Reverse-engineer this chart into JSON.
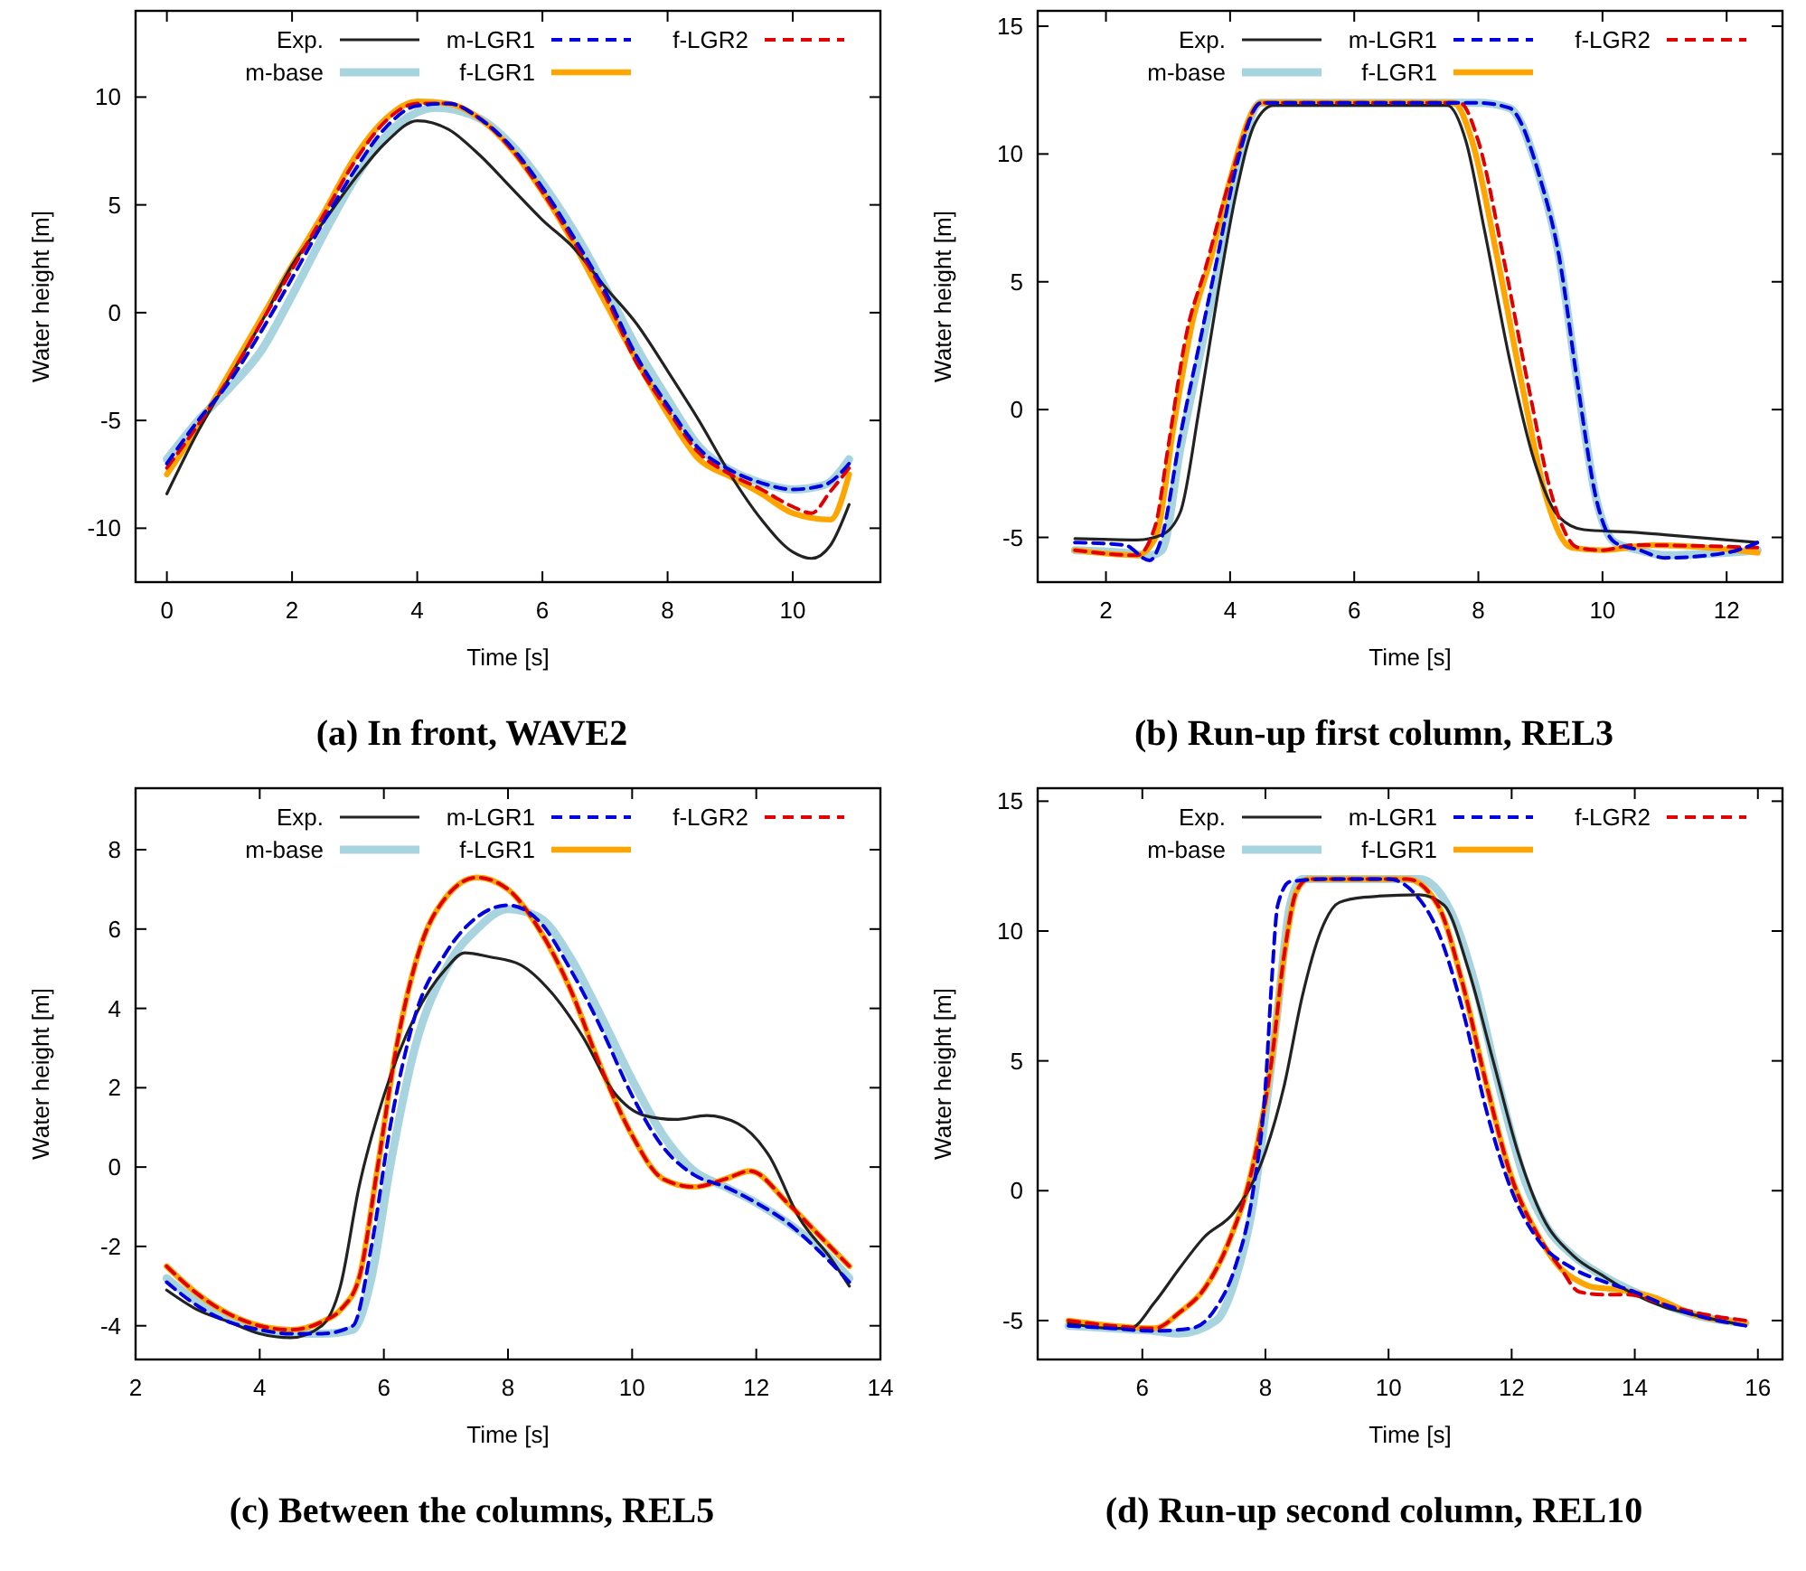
{
  "chart_data": [
    {
      "type": "line",
      "title": "(a) In front, WAVE2",
      "xlabel": "Time [s]",
      "ylabel": "Water height [m]",
      "xlim": [
        -0.5,
        11.4
      ],
      "ylim": [
        -12.5,
        14
      ],
      "xticks": [
        0,
        2,
        4,
        6,
        8,
        10
      ],
      "yticks": [
        -10,
        -5,
        0,
        5,
        10
      ],
      "legend": "top",
      "grid": false,
      "series": [
        {
          "name": "Exp.",
          "color": "#222222",
          "line_style": "solid",
          "x": [
            0,
            0.5,
            1,
            1.5,
            2,
            2.5,
            3,
            3.5,
            4,
            4.5,
            5,
            5.5,
            6,
            6.5,
            7,
            7.5,
            8,
            8.5,
            9,
            9.5,
            10,
            10.3,
            10.6,
            10.9
          ],
          "values": [
            -8.4,
            -5.5,
            -3,
            -0.5,
            2.2,
            4.2,
            6.2,
            7.9,
            8.9,
            8.5,
            7.3,
            5.8,
            4.3,
            3,
            1.2,
            -0.5,
            -2.7,
            -5,
            -7.5,
            -9.6,
            -11.1,
            -11.4,
            -10.8,
            -8.9
          ]
        },
        {
          "name": "m-LGR1",
          "color": "#0000e0",
          "line_style": "dashed",
          "x": [
            0,
            0.5,
            1,
            1.5,
            2,
            2.5,
            3,
            3.5,
            4,
            4.5,
            5,
            5.5,
            6,
            6.5,
            7,
            7.5,
            8,
            8.5,
            9,
            9.5,
            10,
            10.5,
            10.9
          ],
          "values": [
            -7,
            -5,
            -3.2,
            -0.9,
            1.6,
            4.2,
            6.6,
            8.6,
            9.6,
            9.7,
            9,
            7.7,
            5.8,
            3.5,
            1,
            -2,
            -4.3,
            -6.3,
            -7.3,
            -7.9,
            -8.2,
            -8,
            -7
          ]
        },
        {
          "name": "f-LGR2",
          "color": "#e00000",
          "line_style": "dashed",
          "x": [
            0,
            0.5,
            1,
            1.5,
            2,
            2.5,
            3,
            3.5,
            4,
            4.5,
            5,
            5.5,
            6,
            6.5,
            7,
            7.5,
            8,
            8.5,
            9,
            9.5,
            10,
            10.3,
            10.6,
            10.9
          ],
          "values": [
            -7.2,
            -5.2,
            -3,
            -0.5,
            2,
            4.5,
            7,
            8.9,
            9.7,
            9.7,
            9,
            7.6,
            5.6,
            3.3,
            0.8,
            -2.3,
            -4.5,
            -6.5,
            -7.5,
            -8.2,
            -9,
            -9.3,
            -8.3,
            -7.2
          ]
        },
        {
          "name": "m-base",
          "color": "#a8d4e0",
          "line_style": "solid",
          "x": [
            0,
            0.5,
            1,
            1.5,
            2,
            2.5,
            3,
            3.5,
            4,
            4.3,
            5,
            5.5,
            6,
            6.5,
            7,
            7.5,
            8,
            8.5,
            9,
            9.5,
            10,
            10.5,
            10.9
          ],
          "values": [
            -6.8,
            -5,
            -3.5,
            -1.8,
            0.8,
            3.6,
            6.2,
            8.2,
            9.3,
            9.5,
            9,
            7.8,
            6,
            3.8,
            1.2,
            -1.6,
            -4,
            -6.2,
            -7.3,
            -7.9,
            -8.2,
            -8,
            -6.8
          ]
        },
        {
          "name": "f-LGR1",
          "color": "#ffa500",
          "line_style": "solid",
          "x": [
            0,
            0.5,
            1,
            1.5,
            2,
            2.5,
            3,
            3.5,
            4,
            4.5,
            5,
            5.5,
            6,
            6.5,
            7,
            7.5,
            8,
            8.5,
            9,
            9.5,
            10,
            10.6,
            10.9
          ],
          "values": [
            -7.5,
            -5.3,
            -2.8,
            -0.3,
            2.2,
            4.6,
            7.2,
            9,
            9.8,
            9.7,
            9,
            7.6,
            5.6,
            3.2,
            0.5,
            -2.2,
            -4.7,
            -6.8,
            -7.6,
            -8.4,
            -9.3,
            -9.6,
            -7.5
          ]
        }
      ]
    },
    {
      "type": "line",
      "title": "(b) Run-up first column, REL3",
      "xlabel": "Time [s]",
      "ylabel": "Water height [m]",
      "xlim": [
        0.9,
        12.9
      ],
      "ylim": [
        -6.75,
        15.6
      ],
      "xticks": [
        2,
        4,
        6,
        8,
        10,
        12
      ],
      "yticks": [
        -5,
        0,
        5,
        10,
        15
      ],
      "legend": "top",
      "grid": false,
      "series": [
        {
          "name": "Exp.",
          "color": "#222222",
          "line_style": "solid",
          "x": [
            1.5,
            2.5,
            2.9,
            3.2,
            3.5,
            3.8,
            4.1,
            4.4,
            4.7,
            6,
            7.5,
            7.8,
            8.1,
            8.5,
            8.9,
            9.3,
            9.7,
            10.5,
            11,
            12.5
          ],
          "values": [
            -5.05,
            -5.1,
            -4.9,
            -4,
            0,
            4.5,
            8.5,
            11.2,
            11.9,
            11.9,
            11.9,
            10.5,
            7,
            2,
            -2,
            -4.2,
            -4.7,
            -4.8,
            -4.9,
            -5.2
          ]
        },
        {
          "name": "m-LGR1",
          "color": "#0000e0",
          "line_style": "dashed",
          "x": [
            1.5,
            2.3,
            2.7,
            2.9,
            3.2,
            3.5,
            3.8,
            4.1,
            4.5,
            6,
            8,
            8.5,
            9,
            9.3,
            9.6,
            9.9,
            10.2,
            10.6,
            11,
            12,
            12.5
          ],
          "values": [
            -5.2,
            -5.3,
            -5.9,
            -5,
            -1,
            2.5,
            6,
            9.5,
            12,
            12,
            12,
            11.8,
            9,
            6,
            1,
            -3.5,
            -5.2,
            -5.5,
            -5.8,
            -5.6,
            -5.2
          ]
        },
        {
          "name": "f-LGR2",
          "color": "#e00000",
          "line_style": "dashed",
          "x": [
            1.5,
            2.5,
            2.8,
            3,
            3.3,
            3.6,
            4,
            4.5,
            7.7,
            8,
            8.4,
            8.8,
            9.2,
            9.6,
            10,
            10.5,
            12.5
          ],
          "values": [
            -5.5,
            -5.7,
            -4.5,
            -1.5,
            3,
            5.5,
            9,
            12,
            12,
            10.5,
            6,
            1,
            -3.5,
            -5.4,
            -5.5,
            -5.3,
            -5.4
          ]
        },
        {
          "name": "m-base",
          "color": "#a8d4e0",
          "line_style": "solid",
          "x": [
            1.5,
            2.3,
            2.7,
            2.9,
            3.2,
            3.5,
            3.8,
            4.1,
            4.5,
            6,
            8,
            8.5,
            9,
            9.3,
            9.6,
            9.9,
            10.2,
            10.6,
            11,
            12,
            12.5
          ],
          "values": [
            -5.5,
            -5.6,
            -5.7,
            -5.5,
            -1.5,
            2,
            5.5,
            9.3,
            12,
            12,
            12,
            11.8,
            9,
            6,
            1,
            -3.5,
            -5.2,
            -5.5,
            -5.7,
            -5.6,
            -5.5
          ]
        },
        {
          "name": "f-LGR1",
          "color": "#ffa500",
          "line_style": "solid",
          "x": [
            1.5,
            2.5,
            2.8,
            3.1,
            3.4,
            3.7,
            4,
            4.5,
            7.6,
            7.9,
            8.3,
            8.7,
            9.1,
            9.5,
            10,
            10.8,
            12.5
          ],
          "values": [
            -5.5,
            -5.7,
            -5,
            -0.5,
            3.5,
            6,
            9,
            12,
            12,
            10.5,
            6,
            1,
            -3.5,
            -5.4,
            -5.5,
            -5.3,
            -5.6
          ]
        }
      ]
    },
    {
      "type": "line",
      "title": "(c) Between the columns, REL5",
      "xlabel": "Time [s]",
      "ylabel": "Water height [m]",
      "xlim": [
        2,
        14
      ],
      "ylim": [
        -4.85,
        9.55
      ],
      "xticks": [
        2,
        4,
        6,
        8,
        10,
        12,
        14
      ],
      "yticks": [
        -4,
        -2,
        0,
        2,
        4,
        6,
        8
      ],
      "legend": "top",
      "grid": false,
      "series": [
        {
          "name": "Exp.",
          "color": "#222222",
          "line_style": "solid",
          "x": [
            2.5,
            3,
            3.5,
            4,
            4.5,
            5,
            5.3,
            5.6,
            6,
            6.5,
            7,
            7.3,
            7.7,
            8.2,
            8.7,
            9.2,
            9.7,
            10.2,
            10.7,
            11.2,
            11.7,
            12.2,
            12.7,
            13.2,
            13.5
          ],
          "values": [
            -3.1,
            -3.6,
            -3.9,
            -4.2,
            -4.3,
            -4,
            -3,
            -0.5,
            1.8,
            3.8,
            5,
            5.4,
            5.3,
            5.1,
            4.4,
            3.3,
            1.9,
            1.3,
            1.2,
            1.3,
            1.1,
            0.3,
            -1.3,
            -2.3,
            -3
          ]
        },
        {
          "name": "m-LGR1",
          "color": "#0000e0",
          "line_style": "dashed",
          "x": [
            2.5,
            3,
            3.5,
            4,
            4.5,
            5,
            5.5,
            5.8,
            6.1,
            6.5,
            7,
            7.5,
            8,
            8.5,
            9,
            9.5,
            10,
            10.5,
            11,
            11.5,
            12,
            12.5,
            13,
            13.5
          ],
          "values": [
            -2.9,
            -3.5,
            -3.9,
            -4.1,
            -4.2,
            -4.2,
            -4,
            -2,
            1,
            3.8,
            5.4,
            6.3,
            6.6,
            6.2,
            5,
            3.5,
            1.8,
            0.5,
            -0.2,
            -0.5,
            -0.9,
            -1.4,
            -2.1,
            -2.9
          ]
        },
        {
          "name": "f-LGR2",
          "color": "#e00000",
          "line_style": "dashed",
          "x": [
            2.5,
            3,
            3.5,
            4,
            4.5,
            5,
            5.3,
            5.6,
            5.9,
            6.2,
            6.6,
            7,
            7.5,
            8,
            8.5,
            9,
            9.5,
            10,
            10.5,
            11,
            11.5,
            11.9,
            12.5,
            13,
            13.5
          ],
          "values": [
            -2.5,
            -3.2,
            -3.7,
            -4,
            -4.1,
            -3.9,
            -3.6,
            -2.8,
            0,
            3,
            5.6,
            6.8,
            7.3,
            7,
            6,
            4.5,
            2.5,
            0.8,
            -0.3,
            -0.5,
            -0.3,
            -0.1,
            -0.9,
            -1.7,
            -2.5
          ]
        },
        {
          "name": "m-base",
          "color": "#a8d4e0",
          "line_style": "solid",
          "x": [
            2.5,
            3,
            3.5,
            4,
            4.5,
            5,
            5.5,
            5.8,
            6.1,
            6.5,
            7,
            7.5,
            8,
            8.5,
            9,
            9.5,
            10,
            10.5,
            11,
            11.5,
            12,
            12.5,
            13,
            13.5
          ],
          "values": [
            -2.8,
            -3.4,
            -3.8,
            -4.1,
            -4.2,
            -4.2,
            -4.1,
            -2.8,
            0,
            3,
            5,
            6,
            6.5,
            6.3,
            5.3,
            3.8,
            2.2,
            0.8,
            -0.1,
            -0.5,
            -0.9,
            -1.4,
            -2,
            -2.8
          ]
        },
        {
          "name": "f-LGR1",
          "color": "#ffa500",
          "line_style": "solid",
          "x": [
            2.5,
            3,
            3.5,
            4,
            4.5,
            5,
            5.3,
            5.6,
            5.9,
            6.2,
            6.6,
            7,
            7.5,
            8,
            8.5,
            9,
            9.5,
            10,
            10.5,
            11,
            11.5,
            11.9,
            12.5,
            13,
            13.5
          ],
          "values": [
            -2.5,
            -3.2,
            -3.7,
            -4,
            -4.1,
            -3.9,
            -3.6,
            -2.8,
            0,
            3,
            5.6,
            6.8,
            7.3,
            7,
            6,
            4.5,
            2.5,
            0.8,
            -0.3,
            -0.5,
            -0.3,
            -0.1,
            -0.9,
            -1.7,
            -2.5
          ]
        }
      ]
    },
    {
      "type": "line",
      "title": "(d) Run-up second column, REL10",
      "xlabel": "Time [s]",
      "ylabel": "Water height [m]",
      "xlim": [
        4.3,
        16.4
      ],
      "ylim": [
        -6.5,
        15.5
      ],
      "xticks": [
        6,
        8,
        10,
        12,
        14,
        16
      ],
      "yticks": [
        -5,
        0,
        5,
        10,
        15
      ],
      "legend": "top",
      "grid": false,
      "series": [
        {
          "name": "Exp.",
          "color": "#222222",
          "line_style": "solid",
          "x": [
            4.8,
            5.5,
            5.8,
            6.2,
            6.6,
            7,
            7.5,
            8,
            8.3,
            8.6,
            8.9,
            9.2,
            9.6,
            10.5,
            10.9,
            11.3,
            11.7,
            12.1,
            12.5,
            13,
            13.5,
            14,
            14.5,
            15,
            15.8
          ],
          "values": [
            -5.1,
            -5.3,
            -5.3,
            -4.3,
            -3,
            -1.8,
            -0.8,
            1.5,
            4,
            7.5,
            10,
            11.1,
            11.3,
            11.4,
            11,
            8.5,
            5,
            1.5,
            -1,
            -2.5,
            -3.3,
            -4,
            -4.5,
            -4.8,
            -5.2
          ]
        },
        {
          "name": "m-LGR1",
          "color": "#0000e0",
          "line_style": "dashed",
          "x": [
            4.8,
            5.5,
            6.2,
            6.8,
            7.2,
            7.5,
            7.8,
            8,
            8.1,
            8.2,
            8.4,
            9,
            10,
            10.4,
            10.8,
            11.2,
            11.6,
            12,
            12.4,
            13,
            13.5,
            14,
            14.5,
            15,
            15.8
          ],
          "values": [
            -5.2,
            -5.3,
            -5.4,
            -5.3,
            -4.5,
            -3,
            0,
            4,
            8,
            11,
            11.9,
            12,
            12,
            11.5,
            10,
            7,
            3,
            0,
            -1.8,
            -3,
            -3.5,
            -3.9,
            -4.4,
            -4.8,
            -5.2
          ]
        },
        {
          "name": "f-LGR2",
          "color": "#e00000",
          "line_style": "dashed",
          "x": [
            4.8,
            5.5,
            6.2,
            6.6,
            7,
            7.4,
            7.8,
            8.1,
            8.3,
            8.5,
            8.7,
            10.3,
            10.8,
            11.2,
            11.6,
            12,
            12.4,
            12.8,
            13.1,
            13.5,
            13.9,
            14.5,
            15,
            15.8
          ],
          "values": [
            -5,
            -5.2,
            -5.3,
            -4.7,
            -3.8,
            -2,
            1,
            5,
            9,
            11.5,
            12,
            12,
            11,
            8,
            4,
            0.5,
            -1.6,
            -3,
            -3.9,
            -4,
            -4,
            -4.4,
            -4.7,
            -5
          ]
        },
        {
          "name": "m-base",
          "color": "#a8d4e0",
          "line_style": "solid",
          "x": [
            4.8,
            5.5,
            6.2,
            6.6,
            7.2,
            7.5,
            7.8,
            8,
            8.2,
            8.4,
            8.6,
            10.5,
            11,
            11.4,
            11.8,
            12.2,
            12.6,
            13,
            13.5,
            14,
            14.5,
            15,
            15.8
          ],
          "values": [
            -5.2,
            -5.3,
            -5.4,
            -5.5,
            -5,
            -3.5,
            -0.5,
            3,
            7,
            11,
            12,
            12,
            10.8,
            8,
            4,
            0.5,
            -1.5,
            -2.5,
            -3.3,
            -3.9,
            -4.4,
            -4.8,
            -5.1
          ]
        },
        {
          "name": "f-LGR1",
          "color": "#ffa500",
          "line_style": "solid",
          "x": [
            4.8,
            5.5,
            6.2,
            6.6,
            7,
            7.4,
            7.8,
            8.1,
            8.3,
            8.5,
            8.7,
            10.3,
            10.8,
            11.2,
            11.6,
            12,
            12.4,
            12.8,
            13.1,
            13.3,
            13.7,
            14.3,
            15,
            15.8
          ],
          "values": [
            -5,
            -5.2,
            -5.3,
            -4.7,
            -3.8,
            -2,
            1,
            5,
            9,
            11.5,
            12,
            12,
            11,
            8,
            4,
            0.5,
            -1.6,
            -3,
            -3.5,
            -3.7,
            -3.8,
            -4.1,
            -4.8,
            -5.1
          ]
        }
      ]
    }
  ]
}
